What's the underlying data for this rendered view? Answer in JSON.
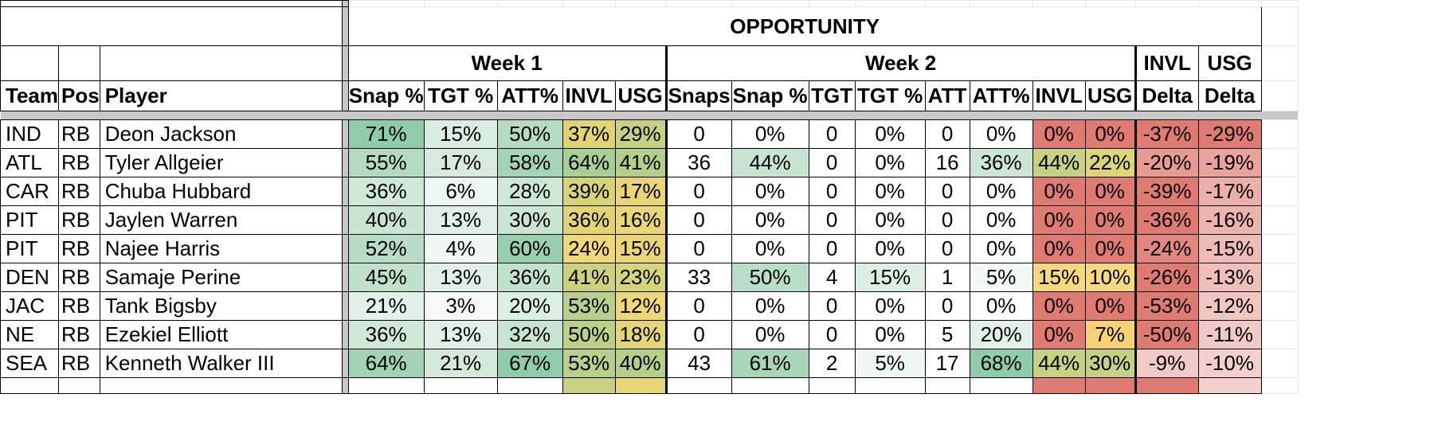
{
  "header": {
    "opportunity": "OPPORTUNITY",
    "week1": "Week 1",
    "week2": "Week 2",
    "invl": "INVL",
    "usg": "USG",
    "delta": "Delta"
  },
  "columns": {
    "team": "Team",
    "pos": "Pos",
    "player": "Player",
    "w1": [
      "Snap %",
      "TGT %",
      "ATT%",
      "INVL",
      "USG"
    ],
    "w2": [
      "Snaps",
      "Snap %",
      "TGT",
      "TGT %",
      "ATT",
      "ATT%",
      "INVL",
      "USG"
    ],
    "deltas": [
      "Delta",
      "Delta"
    ]
  },
  "colors": {
    "green_strong": "#8fcca9",
    "green_mid": "#b4dcc3",
    "green_light": "#daede1",
    "yellow": "#f5d97a",
    "olive": "#c7d17f",
    "red_strong": "#e07b72",
    "red_mid": "#e69a92",
    "red_light": "#f2c8c3",
    "separator": "#c8c8c8"
  },
  "rows": [
    {
      "team": "IND",
      "pos": "RB",
      "player": "Deon Jackson",
      "w1": [
        "71%",
        "15%",
        "50%",
        "37%",
        "29%"
      ],
      "w2": [
        "0",
        "0%",
        "0",
        "0%",
        "0",
        "0%",
        "0%",
        "0%"
      ],
      "delta": [
        "-37%",
        "-29%"
      ]
    },
    {
      "team": "ATL",
      "pos": "RB",
      "player": "Tyler Allgeier",
      "w1": [
        "55%",
        "17%",
        "58%",
        "64%",
        "41%"
      ],
      "w2": [
        "36",
        "44%",
        "0",
        "0%",
        "16",
        "36%",
        "44%",
        "22%"
      ],
      "delta": [
        "-20%",
        "-19%"
      ]
    },
    {
      "team": "CAR",
      "pos": "RB",
      "player": "Chuba Hubbard",
      "w1": [
        "36%",
        "6%",
        "28%",
        "39%",
        "17%"
      ],
      "w2": [
        "0",
        "0%",
        "0",
        "0%",
        "0",
        "0%",
        "0%",
        "0%"
      ],
      "delta": [
        "-39%",
        "-17%"
      ]
    },
    {
      "team": "PIT",
      "pos": "RB",
      "player": "Jaylen Warren",
      "w1": [
        "40%",
        "13%",
        "30%",
        "36%",
        "16%"
      ],
      "w2": [
        "0",
        "0%",
        "0",
        "0%",
        "0",
        "0%",
        "0%",
        "0%"
      ],
      "delta": [
        "-36%",
        "-16%"
      ]
    },
    {
      "team": "PIT",
      "pos": "RB",
      "player": "Najee Harris",
      "w1": [
        "52%",
        "4%",
        "60%",
        "24%",
        "15%"
      ],
      "w2": [
        "0",
        "0%",
        "0",
        "0%",
        "0",
        "0%",
        "0%",
        "0%"
      ],
      "delta": [
        "-24%",
        "-15%"
      ]
    },
    {
      "team": "DEN",
      "pos": "RB",
      "player": "Samaje Perine",
      "w1": [
        "45%",
        "13%",
        "36%",
        "41%",
        "23%"
      ],
      "w2": [
        "33",
        "50%",
        "4",
        "15%",
        "1",
        "5%",
        "15%",
        "10%"
      ],
      "delta": [
        "-26%",
        "-13%"
      ]
    },
    {
      "team": "JAC",
      "pos": "RB",
      "player": "Tank Bigsby",
      "w1": [
        "21%",
        "3%",
        "20%",
        "53%",
        "12%"
      ],
      "w2": [
        "0",
        "0%",
        "0",
        "0%",
        "0",
        "0%",
        "0%",
        "0%"
      ],
      "delta": [
        "-53%",
        "-12%"
      ]
    },
    {
      "team": "NE",
      "pos": "RB",
      "player": "Ezekiel Elliott",
      "w1": [
        "36%",
        "13%",
        "32%",
        "50%",
        "18%"
      ],
      "w2": [
        "0",
        "0%",
        "0",
        "0%",
        "5",
        "20%",
        "0%",
        "7%"
      ],
      "delta": [
        "-50%",
        "-11%"
      ]
    },
    {
      "team": "SEA",
      "pos": "RB",
      "player": "Kenneth Walker III",
      "w1": [
        "64%",
        "21%",
        "67%",
        "53%",
        "40%"
      ],
      "w2": [
        "43",
        "61%",
        "2",
        "5%",
        "17",
        "68%",
        "44%",
        "30%"
      ],
      "delta": [
        "-9%",
        "-10%"
      ]
    }
  ]
}
